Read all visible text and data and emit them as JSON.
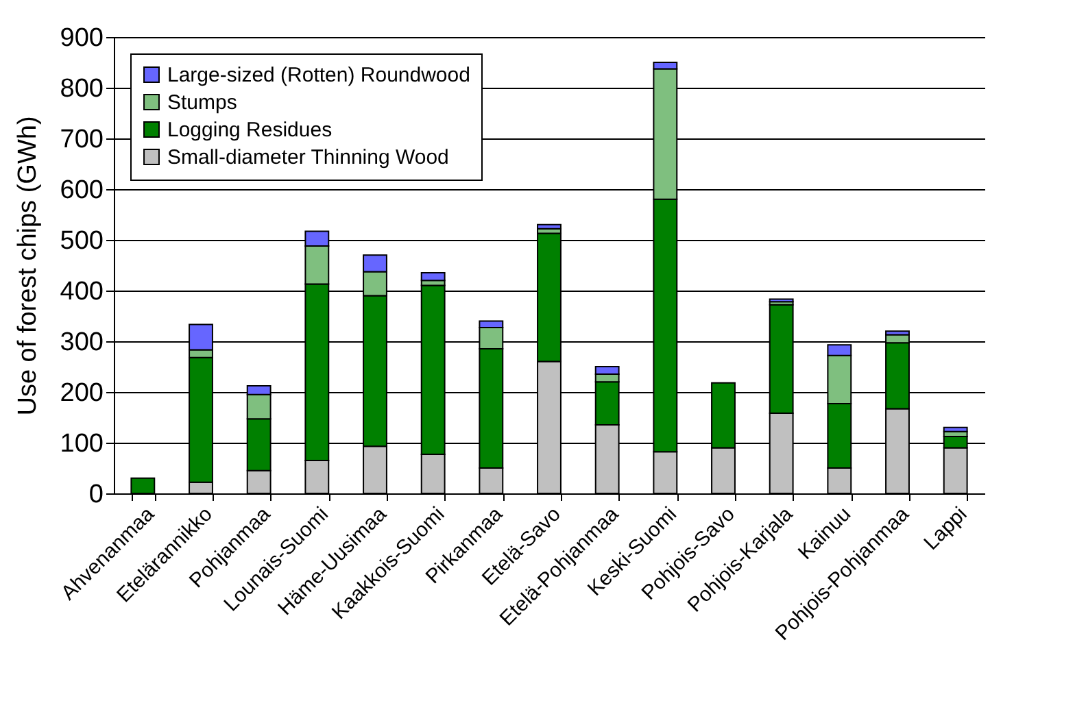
{
  "chart_data": {
    "type": "bar",
    "stacked": true,
    "ylabel": "Use of forest chips (GWh)",
    "categories": [
      "Ahvenanmaa",
      "Etelärannikko",
      "Pohjanmaa",
      "Lounais-Suomi",
      "Häme-Uusimaa",
      "Kaakkois-Suomi",
      "Pirkanmaa",
      "Etelä-Savo",
      "Etelä-Pohjanmaa",
      "Keski-Suomi",
      "Pohjois-Savo",
      "Pohjois-Karjala",
      "Kainuu",
      "Pohjois-Pohjanmaa",
      "Lappi"
    ],
    "series": [
      {
        "name": "Small-diameter Thinning Wood",
        "color": "#c0c0c0",
        "values": [
          0,
          22,
          45,
          65,
          93,
          77,
          50,
          260,
          135,
          82,
          90,
          158,
          50,
          167,
          90
        ]
      },
      {
        "name": "Logging Residues",
        "color": "#008000",
        "values": [
          30,
          246,
          102,
          348,
          297,
          333,
          235,
          253,
          85,
          498,
          128,
          214,
          127,
          130,
          22
        ]
      },
      {
        "name": "Stumps",
        "color": "#7fbf7f",
        "values": [
          0,
          15,
          48,
          75,
          47,
          10,
          42,
          9,
          15,
          257,
          0,
          6,
          95,
          16,
          10
        ]
      },
      {
        "name": "Large-sized (Rotten) Roundwood",
        "color": "#6666ff",
        "values": [
          0,
          50,
          17,
          29,
          33,
          15,
          13,
          8,
          15,
          13,
          0,
          5,
          21,
          7,
          8
        ]
      }
    ],
    "ylim": [
      0,
      900
    ],
    "yticks": [
      0,
      100,
      200,
      300,
      400,
      500,
      600,
      700,
      800,
      900
    ],
    "grid": "y",
    "legend": "top left"
  }
}
